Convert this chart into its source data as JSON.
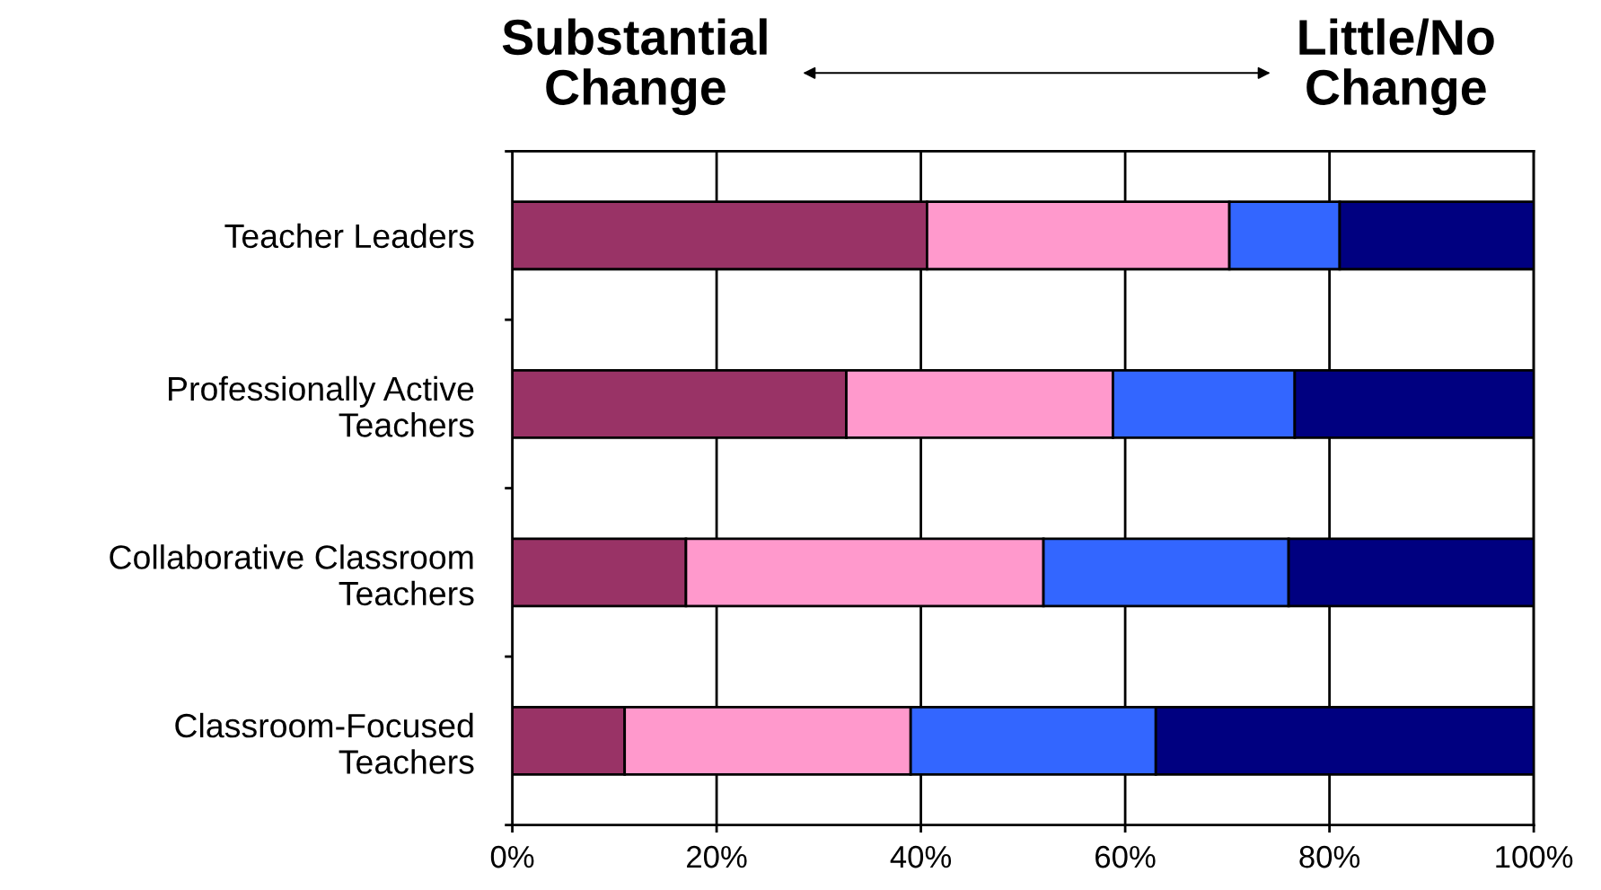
{
  "chart_data": {
    "type": "bar",
    "orientation": "horizontal",
    "stacked": true,
    "categories": [
      "Teacher Leaders",
      "Professionally Active\nTeachers",
      "Collaborative Classroom\nTeachers",
      "Classroom-Focused\nTeachers"
    ],
    "series": [
      {
        "color": "#993366",
        "values": [
          40.6,
          32.7,
          17,
          11
        ]
      },
      {
        "color": "#ff99cc",
        "values": [
          29.6,
          26.1,
          35,
          28
        ]
      },
      {
        "color": "#3366ff",
        "values": [
          10.8,
          17.8,
          24,
          24
        ]
      },
      {
        "color": "#000080",
        "values": [
          19.0,
          23.4,
          24,
          37
        ]
      }
    ],
    "xlim": [
      0,
      100
    ],
    "xticks": [
      {
        "value": 0,
        "label": "0%"
      },
      {
        "value": 20,
        "label": "20%"
      },
      {
        "value": 40,
        "label": "40%"
      },
      {
        "value": 60,
        "label": "60%"
      },
      {
        "value": 80,
        "label": "80%"
      },
      {
        "value": 100,
        "label": "100%"
      }
    ],
    "grid": "x",
    "legend": false,
    "annotations": [
      "Substantial\nChange",
      "Little/No\nChange"
    ]
  }
}
